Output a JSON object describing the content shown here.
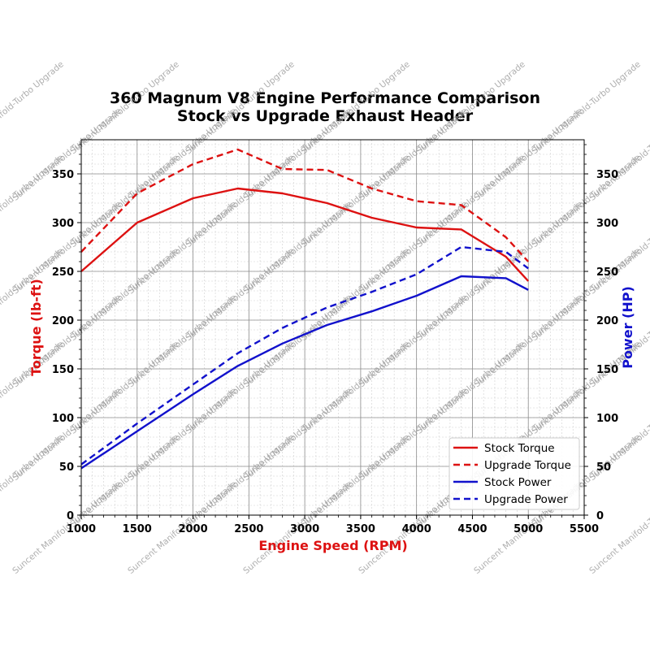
{
  "chart_data": {
    "type": "line",
    "title": [
      "360 Magnum V8 Engine Performance Comparison",
      "Stock vs Upgrade Exhaust Header"
    ],
    "xlabel": "Engine Speed (RPM)",
    "ylabel_left": "Torque (lb-ft)",
    "ylabel_right": "Power (HP)",
    "xlim": [
      1000,
      5500
    ],
    "ylim": [
      0,
      385
    ],
    "xticks": [
      1000,
      1500,
      2000,
      2500,
      3000,
      3500,
      4000,
      4500,
      5000,
      5500
    ],
    "yticks": [
      0,
      50,
      100,
      150,
      200,
      250,
      300,
      350
    ],
    "grid": true,
    "legend_position": "lower-right",
    "x": [
      1000,
      1500,
      2000,
      2400,
      2800,
      3200,
      3600,
      4000,
      4400,
      4800,
      5000
    ],
    "series": [
      {
        "name": "Stock Torque",
        "axis": "left",
        "color": "#dd1111",
        "dash": false,
        "values": [
          250,
          300,
          325,
          335,
          330,
          320,
          305,
          295,
          293,
          265,
          240
        ]
      },
      {
        "name": "Upgrade Torque",
        "axis": "left",
        "color": "#dd1111",
        "dash": true,
        "values": [
          270,
          330,
          360,
          375,
          355,
          354,
          335,
          322,
          318,
          285,
          260
        ]
      },
      {
        "name": "Stock Power",
        "axis": "right",
        "color": "#1111cc",
        "dash": false,
        "values": [
          48,
          86,
          124,
          153,
          176,
          195,
          209,
          225,
          245,
          243,
          231
        ]
      },
      {
        "name": "Upgrade Power",
        "axis": "right",
        "color": "#1111cc",
        "dash": true,
        "values": [
          52,
          94,
          134,
          166,
          192,
          213,
          229,
          247,
          275,
          270,
          253
        ]
      }
    ],
    "xlabel_color": "#dd1111",
    "ylabel_left_color": "#dd1111",
    "ylabel_right_color": "#1111cc",
    "watermark": "Suncent Manifold-Turbo Upgrade"
  }
}
